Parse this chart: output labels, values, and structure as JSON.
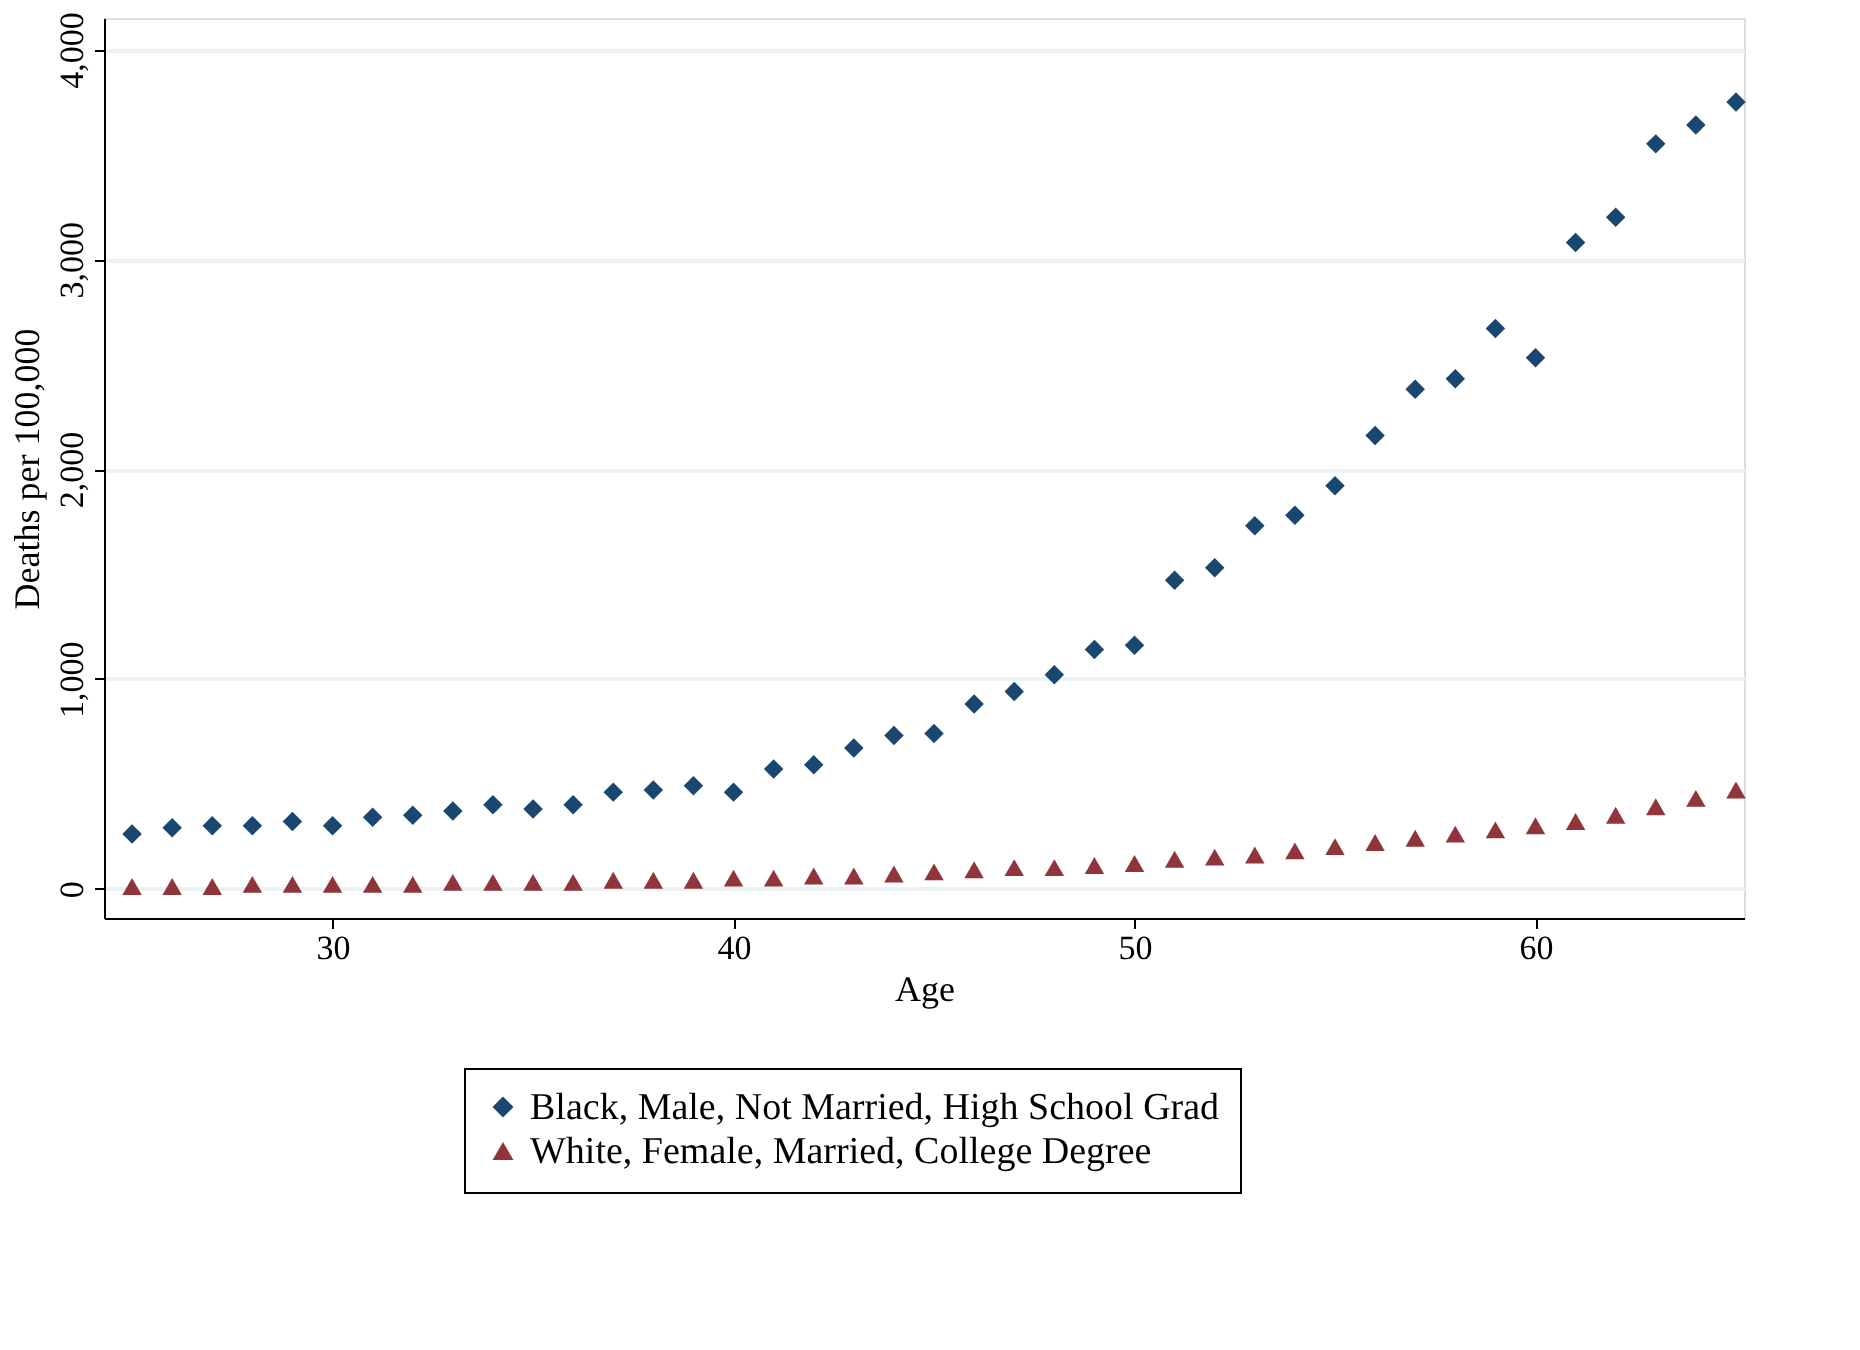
{
  "chart_data": {
    "type": "scatter",
    "xlabel": "Age",
    "ylabel": "Deaths per 100,000",
    "x": [
      25,
      26,
      27,
      28,
      29,
      30,
      31,
      32,
      33,
      34,
      35,
      36,
      37,
      38,
      39,
      40,
      41,
      42,
      43,
      44,
      45,
      46,
      47,
      48,
      49,
      50,
      51,
      52,
      53,
      54,
      55,
      56,
      57,
      58,
      59,
      60,
      61,
      62,
      63,
      64,
      65
    ],
    "series": [
      {
        "name": "Black, Male, Not Married, High School Grad",
        "color": "#1a476f",
        "marker": "diamond",
        "values": [
          260,
          290,
          300,
          300,
          320,
          300,
          340,
          350,
          370,
          400,
          380,
          400,
          460,
          470,
          490,
          460,
          570,
          590,
          670,
          730,
          740,
          880,
          940,
          1020,
          1140,
          1160,
          1470,
          1530,
          1730,
          1780,
          1920,
          2160,
          2380,
          2430,
          2670,
          2530,
          3080,
          3200,
          3550,
          3640,
          3750
        ]
      },
      {
        "name": "White, Female, Married, College Degree",
        "color": "#90353b",
        "marker": "triangle",
        "values": [
          10,
          10,
          10,
          20,
          20,
          20,
          20,
          20,
          30,
          30,
          30,
          30,
          40,
          40,
          40,
          50,
          50,
          60,
          60,
          70,
          80,
          90,
          100,
          100,
          110,
          120,
          140,
          150,
          160,
          180,
          200,
          220,
          240,
          260,
          280,
          300,
          320,
          350,
          390,
          430,
          470
        ]
      }
    ],
    "xlim": [
      24.3,
      65.2
    ],
    "xticks": [
      30,
      40,
      50,
      60
    ],
    "ylim": [
      -140,
      4150
    ],
    "yticks": [
      {
        "value": 0,
        "label": "0"
      },
      {
        "value": 1000,
        "label": "1,000"
      },
      {
        "value": 2000,
        "label": "2,000"
      },
      {
        "value": 3000,
        "label": "3,000"
      },
      {
        "value": 4000,
        "label": "4,000"
      }
    ],
    "grid": "y",
    "legend": "bottom"
  }
}
